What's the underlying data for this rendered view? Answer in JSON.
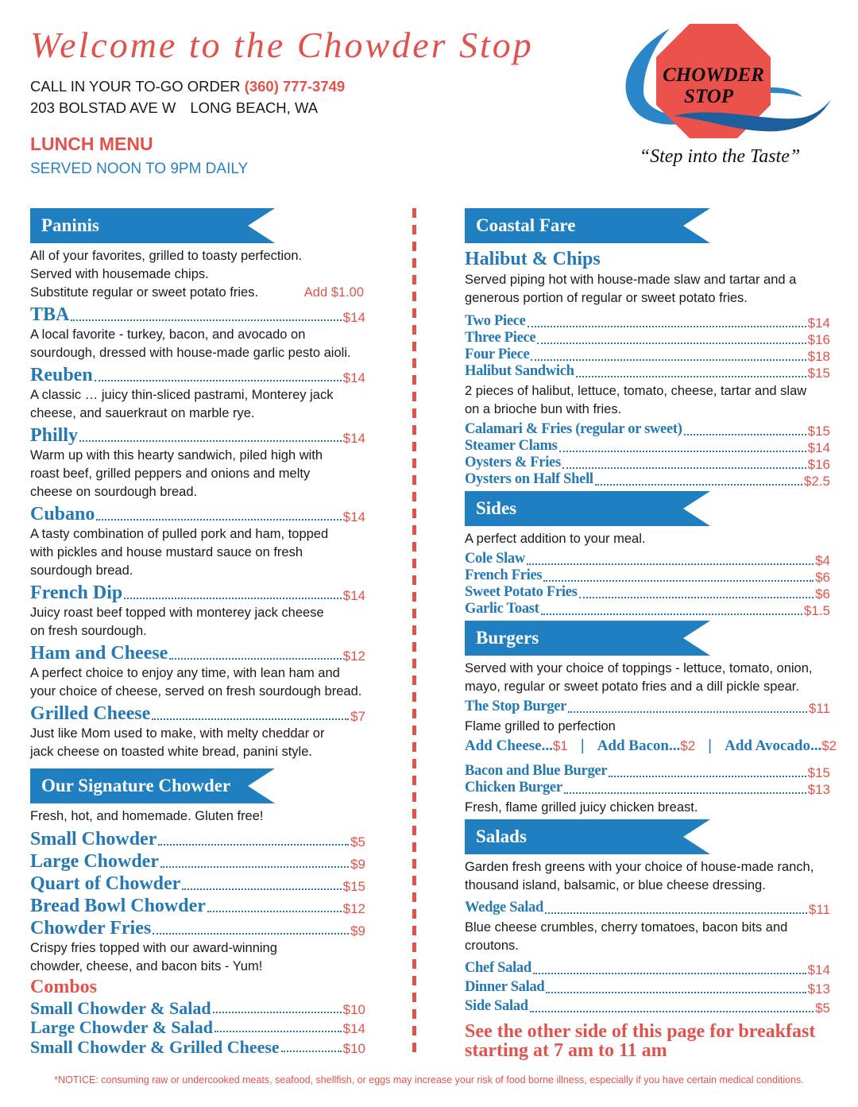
{
  "header": {
    "title": "Welcome to the Chowder Stop",
    "call_label": "CALL IN YOUR TO-GO ORDER",
    "phone": "(360) 777-3749",
    "address": "203 BOLSTAD AVE W",
    "city": "LONG BEACH, WA",
    "menu_title": "LUNCH MENU",
    "served": "SERVED NOON TO 9PM DAILY"
  },
  "logo": {
    "line1": "CHOWDER",
    "line2": "STOP",
    "tagline": "“Step into the Taste”"
  },
  "colors": {
    "red": "#e2524c",
    "blue": "#1f7fc0",
    "item_blue": "#2478b3"
  },
  "left": [
    {
      "id": "paninis",
      "blocks": [
        {
          "kind": "banner",
          "text": "Paninis"
        },
        {
          "kind": "text",
          "text": "All of your favorites, grilled to toasty perfection."
        },
        {
          "kind": "text",
          "text": "Served with housemade chips."
        },
        {
          "kind": "text-price",
          "text": "Substitute regular or sweet potato fries.",
          "price": "Add $1.00"
        },
        {
          "kind": "item",
          "name": "TBA",
          "price": "$14"
        },
        {
          "kind": "text",
          "text": "A local favorite - turkey, bacon, and avocado on"
        },
        {
          "kind": "text",
          "text": "sourdough, dressed with house-made garlic pesto aioli."
        },
        {
          "kind": "item",
          "name": "Reuben",
          "price": "$14"
        },
        {
          "kind": "text",
          "text": "A classic … juicy thin-sliced pastrami, Monterey jack"
        },
        {
          "kind": "text",
          "text": "cheese, and sauerkraut on marble rye."
        },
        {
          "kind": "item",
          "name": "Philly",
          "price": "$14"
        },
        {
          "kind": "text",
          "text": "Warm up with this hearty sandwich, piled high with"
        },
        {
          "kind": "text",
          "text": "roast beef, grilled peppers and onions and melty"
        },
        {
          "kind": "text",
          "text": "cheese on sourdough bread."
        },
        {
          "kind": "item",
          "name": "Cubano",
          "price": "$14"
        },
        {
          "kind": "text",
          "text": "A tasty combination of pulled pork and ham, topped"
        },
        {
          "kind": "text",
          "text": "with pickles and house mustard sauce on fresh"
        },
        {
          "kind": "text",
          "text": "sourdough bread."
        },
        {
          "kind": "item",
          "name": "French Dip",
          "price": "$14"
        },
        {
          "kind": "text",
          "text": "Juicy roast beef topped with monterey jack cheese"
        },
        {
          "kind": "text",
          "text": "on fresh sourdough."
        },
        {
          "kind": "item",
          "name": "Ham and Cheese",
          "price": "$12"
        },
        {
          "kind": "text",
          "text": "A perfect choice to enjoy any time, with lean ham and"
        },
        {
          "kind": "text",
          "text": "your choice of cheese, served on fresh sourdough bread."
        },
        {
          "kind": "item",
          "name": "Grilled Cheese",
          "price": "$7"
        },
        {
          "kind": "text",
          "text": "Just like Mom used to make, with melty cheddar or"
        },
        {
          "kind": "text",
          "text": "jack cheese on toasted white bread, panini style."
        }
      ]
    },
    {
      "id": "chowder",
      "blocks": [
        {
          "kind": "banner",
          "text": "Our Signature Chowder"
        },
        {
          "kind": "text",
          "text": "Fresh, hot, and homemade. Gluten free!"
        },
        {
          "kind": "item",
          "name": "Small Chowder",
          "price": "$5"
        },
        {
          "kind": "item",
          "name": "Large Chowder",
          "price": "$9"
        },
        {
          "kind": "item",
          "name": "Quart of Chowder",
          "price": "$15"
        },
        {
          "kind": "item",
          "name": "Bread Bowl Chowder",
          "price": "$12"
        },
        {
          "kind": "item",
          "name": "Chowder Fries",
          "price": "$9"
        },
        {
          "kind": "text",
          "text": "Crispy fries topped with our award-winning"
        },
        {
          "kind": "text",
          "text": "chowder, cheese, and bacon bits - Yum!"
        },
        {
          "kind": "heading-red",
          "text": "Combos"
        },
        {
          "kind": "combo",
          "name": "Small Chowder & Salad",
          "price": "$10"
        },
        {
          "kind": "combo",
          "name": "Large Chowder & Salad",
          "price": "$14"
        },
        {
          "kind": "combo",
          "name": "Small Chowder & Grilled Cheese",
          "price": "$10"
        }
      ]
    }
  ],
  "right": [
    {
      "id": "coastal",
      "blocks": [
        {
          "kind": "banner",
          "text": "Coastal Fare"
        },
        {
          "kind": "heading-blue",
          "text": "Halibut & Chips"
        },
        {
          "kind": "text",
          "text": "Served piping hot with house-made slaw and tartar and a"
        },
        {
          "kind": "text",
          "text": "generous portion of regular or sweet potato fries."
        },
        {
          "kind": "item",
          "name": "Two Piece",
          "price": "$14"
        },
        {
          "kind": "item",
          "name": "Three Piece",
          "price": "$16"
        },
        {
          "kind": "item",
          "name": "Four Piece",
          "price": "$18"
        },
        {
          "kind": "item",
          "name": "Halibut Sandwich",
          "price": "$15"
        },
        {
          "kind": "text",
          "text": "2 pieces of halibut, lettuce, tomato, cheese, tartar and slaw"
        },
        {
          "kind": "text",
          "text": "on a brioche bun with fries."
        },
        {
          "kind": "item",
          "name": "Calamari & Fries (regular or sweet)",
          "price": "$15"
        },
        {
          "kind": "item",
          "name": "Steamer Clams",
          "price": "$14"
        },
        {
          "kind": "item",
          "name": "Oysters & Fries",
          "price": "$16"
        },
        {
          "kind": "item",
          "name": "Oysters on Half Shell",
          "price": "$2.5"
        }
      ]
    },
    {
      "id": "sides",
      "blocks": [
        {
          "kind": "banner",
          "text": "Sides"
        },
        {
          "kind": "text",
          "text": "A perfect addition to your meal."
        },
        {
          "kind": "item",
          "name": "Cole Slaw",
          "price": "$4"
        },
        {
          "kind": "item",
          "name": "French Fries",
          "price": "$6"
        },
        {
          "kind": "item",
          "name": "Sweet Potato Fries",
          "price": "$6"
        },
        {
          "kind": "item",
          "name": "Garlic Toast",
          "price": "$1.5"
        }
      ]
    },
    {
      "id": "burgers",
      "blocks": [
        {
          "kind": "banner",
          "text": "Burgers"
        },
        {
          "kind": "text",
          "text": "Served with your choice of toppings - lettuce, tomato, onion,"
        },
        {
          "kind": "text",
          "text": "mayo, regular or sweet potato fries and a dill pickle spear."
        },
        {
          "kind": "item",
          "name": "The Stop Burger",
          "price": "$11"
        },
        {
          "kind": "text",
          "text": "Flame grilled to perfection"
        },
        {
          "kind": "addons",
          "items": [
            {
              "name": "Add Cheese...",
              "price": "$1"
            },
            {
              "name": "Add Bacon...",
              "price": "$2"
            },
            {
              "name": "Add Avocado...",
              "price": "$2"
            }
          ]
        },
        {
          "kind": "item",
          "name": "Bacon and Blue Burger",
          "price": "$15"
        },
        {
          "kind": "item",
          "name": "Chicken Burger",
          "price": "$13"
        },
        {
          "kind": "text",
          "text": "Fresh, flame grilled juicy chicken breast."
        }
      ]
    },
    {
      "id": "salads",
      "blocks": [
        {
          "kind": "banner",
          "text": "Salads"
        },
        {
          "kind": "text",
          "text": "Garden fresh greens with your choice of house-made ranch,"
        },
        {
          "kind": "text",
          "text": "thousand island, balsamic, or blue cheese dressing."
        },
        {
          "kind": "item",
          "name": "Wedge Salad",
          "price": "$11"
        },
        {
          "kind": "text",
          "text": "Blue cheese crumbles, cherry tomatoes, bacon bits and"
        },
        {
          "kind": "text",
          "text": "croutons."
        },
        {
          "kind": "item",
          "name": "Chef Salad",
          "price": "$14"
        },
        {
          "kind": "item",
          "name": "Dinner Salad",
          "price": "$13"
        },
        {
          "kind": "item",
          "name": "Side Salad",
          "price": "$5"
        }
      ]
    },
    {
      "id": "callout",
      "blocks": [
        {
          "kind": "callout",
          "text": "See the other side of this page for breakfast"
        },
        {
          "kind": "callout",
          "text": "starting at 7 am to 11 am"
        }
      ]
    }
  ],
  "notice": "*NOTICE: consuming raw or undercooked meats, seafood, shellfish, or eggs may increase your risk of food borne illness, especially if you have certain medical conditions."
}
